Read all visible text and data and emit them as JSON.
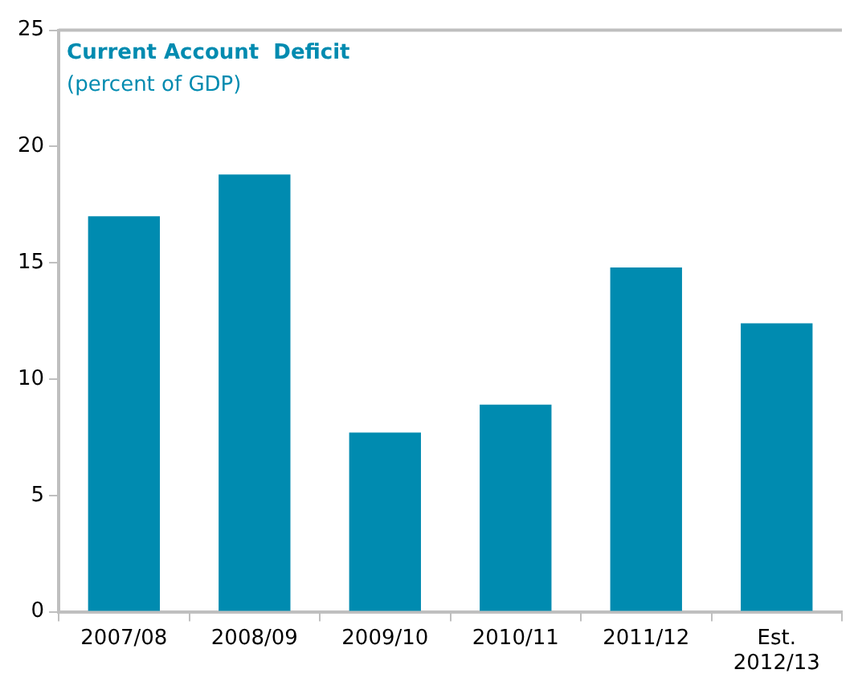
{
  "chart_data": {
    "type": "bar",
    "title": "Current Account  Deficit",
    "subtitle": "(percent of GDP)",
    "categories": [
      "2007/08",
      "2008/09",
      "2009/10",
      "2010/11",
      "2011/12",
      "Est. 2012/13"
    ],
    "values": [
      17.0,
      18.8,
      7.7,
      8.9,
      14.8,
      12.4
    ],
    "color": "#008bb0",
    "ylim": [
      0,
      25
    ],
    "yticks": [
      0,
      5,
      10,
      15,
      20,
      25
    ],
    "grid": false,
    "legend": false
  }
}
